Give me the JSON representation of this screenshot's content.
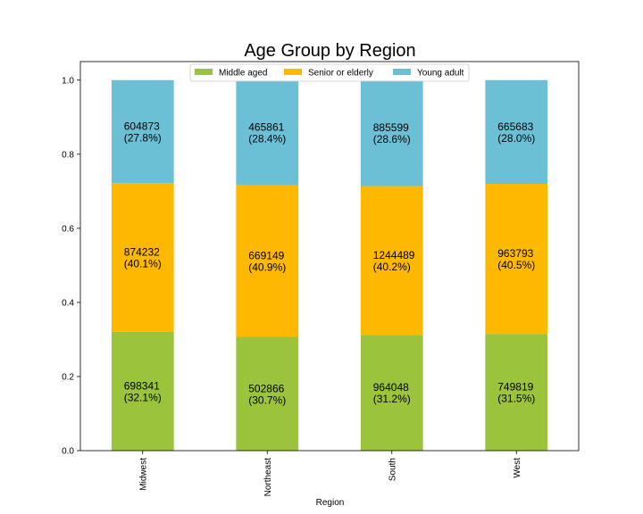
{
  "chart_data": {
    "type": "bar",
    "stacked": true,
    "normalized": true,
    "title": "Age Group by Region",
    "xlabel": "Region",
    "ylabel": "",
    "ylim": [
      0,
      1.05
    ],
    "yticks": [
      0.0,
      0.2,
      0.4,
      0.6,
      0.8,
      1.0
    ],
    "ytick_labels": [
      "0.0",
      "0.2",
      "0.4",
      "0.6",
      "0.8",
      "1.0"
    ],
    "categories": [
      "Midwest",
      "Northeast",
      "South",
      "West"
    ],
    "grid": false,
    "legend_position": "top-center",
    "series": [
      {
        "name": "Middle aged",
        "color": "#9BC43C",
        "counts": [
          698341,
          502866,
          964048,
          749819
        ],
        "values": [
          0.321,
          0.307,
          0.312,
          0.315
        ],
        "labels": [
          "698341\n(32.1%)",
          "502866\n(30.7%)",
          "964048\n(31.2%)",
          "749819\n(31.5%)"
        ]
      },
      {
        "name": "Senior or elderly",
        "color": "#FDB900",
        "counts": [
          874232,
          669149,
          1244489,
          963793
        ],
        "values": [
          0.401,
          0.409,
          0.402,
          0.405
        ],
        "labels": [
          "874232\n(40.1%)",
          "669149\n(40.9%)",
          "1244489\n(40.2%)",
          "963793\n(40.5%)"
        ]
      },
      {
        "name": "Young adult",
        "color": "#6CC0D6",
        "counts": [
          604873,
          465861,
          885599,
          665683
        ],
        "values": [
          0.278,
          0.284,
          0.286,
          0.28
        ],
        "labels": [
          "604873\n(27.8%)",
          "465861\n(28.4%)",
          "885599\n(28.6%)",
          "665683\n(28.0%)"
        ]
      }
    ]
  }
}
